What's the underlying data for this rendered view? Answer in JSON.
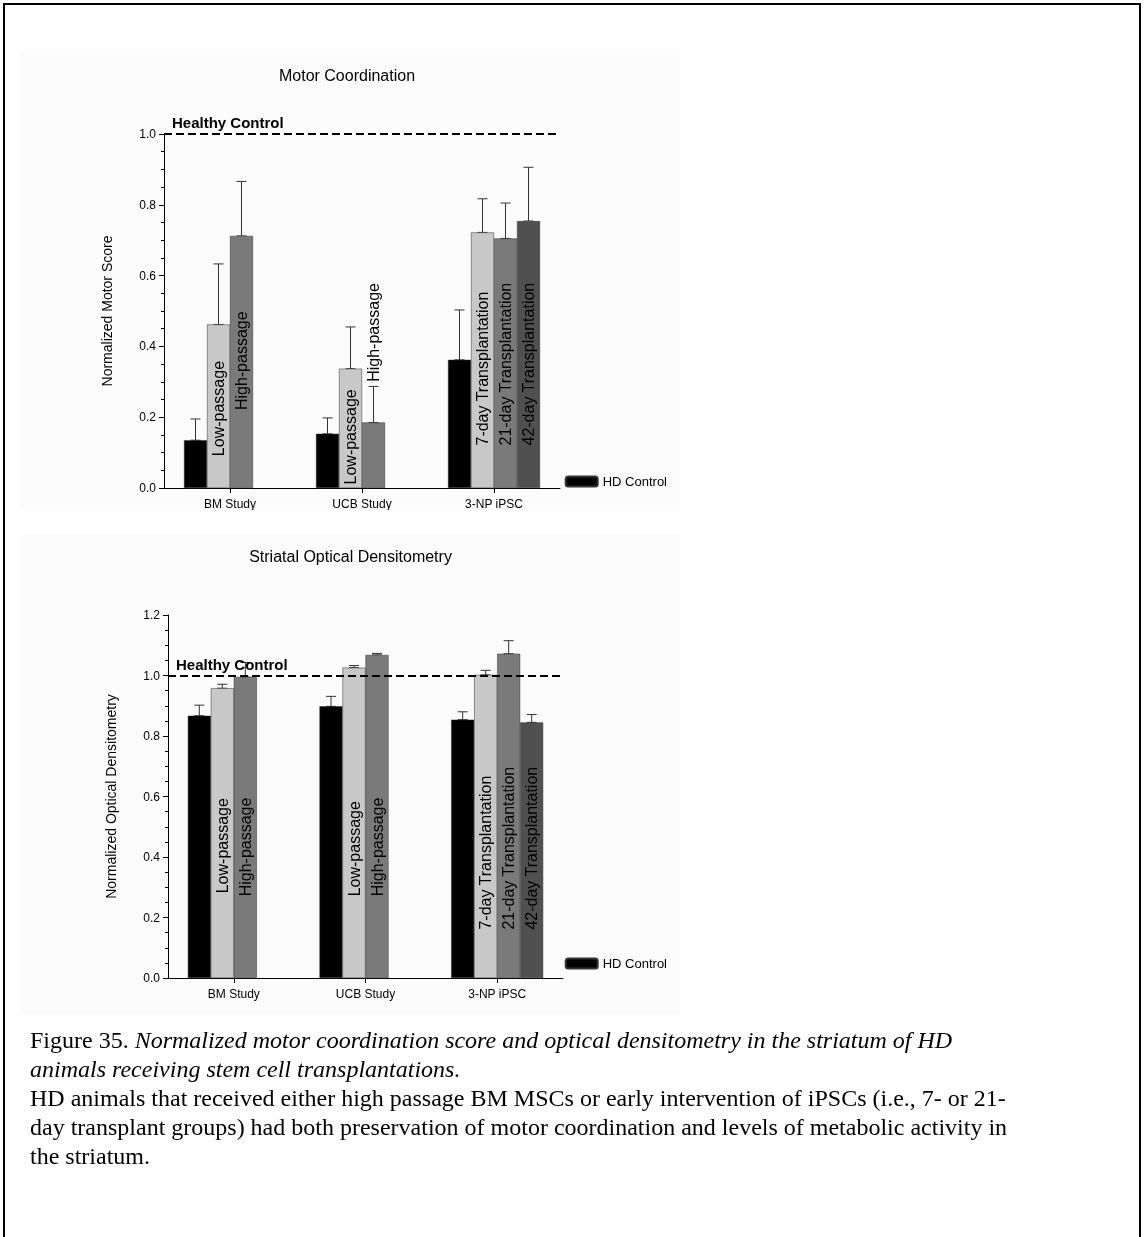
{
  "chart_data": [
    {
      "type": "bar",
      "title": "Motor Coordination",
      "ylabel": "Normalized Motor Score",
      "categories": [
        "BM Study",
        "UCB Study",
        "3-NP iPSC"
      ],
      "series": [
        {
          "name": "HD Control",
          "color": "#000000",
          "values": [
            0.135,
            0.153,
            0.362
          ],
          "errors": [
            [
              0.135,
              0.195
            ],
            [
              0.153,
              0.198
            ],
            [
              0.362,
              0.503
            ]
          ]
        },
        {
          "color": "#c8c8c8",
          "values": [
            0.462,
            0.337,
            0.722
          ],
          "errors": [
            [
              0.462,
              0.633
            ],
            [
              0.337,
              0.455
            ],
            [
              0.722,
              0.817
            ]
          ]
        },
        {
          "color": "#7a7a7a",
          "values": [
            0.712,
            0.185,
            0.705
          ],
          "errors": [
            [
              0.712,
              0.866
            ],
            [
              0.185,
              0.287
            ],
            [
              0.705,
              0.805
            ]
          ]
        },
        {
          "color": "#505050",
          "values": [
            null,
            null,
            0.754
          ],
          "errors": [
            null,
            null,
            [
              0.754,
              0.906
            ]
          ]
        }
      ],
      "ylim": [
        0,
        1.0
      ],
      "yticks": [
        {
          "value": 0,
          "label": "0.0"
        },
        {
          "value": 0.2,
          "label": "0.2"
        },
        {
          "value": 0.4,
          "label": "0.4"
        },
        {
          "value": 0.6,
          "label": "0.6"
        },
        {
          "value": 0.8,
          "label": "0.8"
        },
        {
          "value": 1.0,
          "label": "1.0"
        }
      ],
      "ref_lines": [
        {
          "axis": "y",
          "value": 1.0,
          "label": "Healthy Control",
          "color": "#000000",
          "line_style": "dashed"
        }
      ],
      "annotations": [
        {
          "text": "Low-passage",
          "x": "BM Study",
          "y": 0.09
        },
        {
          "text": "High-passage",
          "x": "BM Study",
          "y": 0.22
        },
        {
          "text": "Low-passage",
          "x": "UCB Study",
          "y": 0.01
        },
        {
          "text": "High-passage",
          "x": "UCB Study",
          "y": 0.3
        },
        {
          "text": "7-day Transplantation",
          "x": "3-NP iPSC",
          "y": 0.12
        },
        {
          "text": "21-day Transplantation",
          "x": "3-NP iPSC",
          "y": 0.12
        },
        {
          "text": "42-day Transplantation",
          "x": "3-NP iPSC",
          "y": 0.12
        }
      ],
      "grid": false,
      "legend": "bottom right"
    },
    {
      "type": "bar",
      "title": "Striatal Optical Densitometry",
      "ylabel": "Normalized Optical Densitometry",
      "categories": [
        "BM Study",
        "UCB Study",
        "3-NP iPSC"
      ],
      "series": [
        {
          "name": "HD Control",
          "color": "#000000",
          "values": [
            0.867,
            0.898,
            0.854
          ],
          "errors": [
            [
              0.867,
              0.902
            ],
            [
              0.898,
              0.931
            ],
            [
              0.854,
              0.88
            ]
          ]
        },
        {
          "color": "#c8c8c8",
          "values": [
            0.958,
            1.026,
            1.002
          ],
          "errors": [
            [
              0.958,
              0.971
            ],
            [
              1.026,
              1.033
            ],
            [
              1.002,
              1.017
            ]
          ]
        },
        {
          "color": "#7a7a7a",
          "values": [
            0.995,
            1.068,
            1.072
          ],
          "errors": [
            [
              0.995,
              1.043
            ],
            [
              1.068,
              1.073
            ],
            [
              1.072,
              1.115
            ]
          ]
        },
        {
          "color": "#505050",
          "values": [
            null,
            null,
            0.845
          ],
          "errors": [
            null,
            null,
            [
              0.845,
              0.871
            ]
          ]
        }
      ],
      "ylim": [
        0,
        1.2
      ],
      "yticks": [
        {
          "value": 0,
          "label": "0.0"
        },
        {
          "value": 0.2,
          "label": "0.2"
        },
        {
          "value": 0.4,
          "label": "0.4"
        },
        {
          "value": 0.6,
          "label": "0.6"
        },
        {
          "value": 0.8,
          "label": "0.8"
        },
        {
          "value": 1.0,
          "label": "1.0"
        },
        {
          "value": 1.2,
          "label": "1.2"
        }
      ],
      "ref_lines": [
        {
          "axis": "y",
          "value": 1.0,
          "label": "Healthy Control",
          "color": "#000000",
          "line_style": "dashed"
        }
      ],
      "grid": false,
      "legend": "bottom right",
      "annotations": [
        {
          "text": "Low-passage",
          "x": "BM Study",
          "y": 0.28
        },
        {
          "text": "High-passage",
          "x": "BM Study",
          "y": 0.27
        },
        {
          "text": "Low-passage",
          "x": "UCB Study",
          "y": 0.27
        },
        {
          "text": "High-passage",
          "x": "UCB Study",
          "y": 0.27
        },
        {
          "text": "7-day Transplantation",
          "x": "3-NP iPSC",
          "y": 0.16
        },
        {
          "text": "21-day Transplantation",
          "x": "3-NP iPSC",
          "y": 0.16
        },
        {
          "text": "42-day Transplantation",
          "x": "3-NP iPSC",
          "y": 0.16
        },
        "Figure 35.",
        "Normalized motor coordination score and optical densitometry in the striatum of HD animals receiving stem cell transplantations.",
        "HD animals that received either high passage BM MSCs or early intervention of iPSCs (i.e., 7- or 21-day transplant groups) had both preservation of motor coordination and levels of metabolic activity in the striatum."
      ]
    }
  ]
}
